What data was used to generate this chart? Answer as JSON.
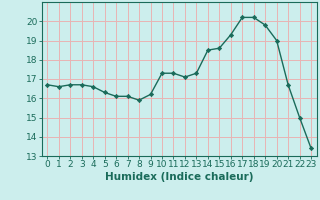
{
  "x": [
    0,
    1,
    2,
    3,
    4,
    5,
    6,
    7,
    8,
    9,
    10,
    11,
    12,
    13,
    14,
    15,
    16,
    17,
    18,
    19,
    20,
    21,
    22,
    23
  ],
  "y": [
    16.7,
    16.6,
    16.7,
    16.7,
    16.6,
    16.3,
    16.1,
    16.1,
    15.9,
    16.2,
    17.3,
    17.3,
    17.1,
    17.3,
    18.5,
    18.6,
    19.3,
    20.2,
    20.2,
    19.8,
    19.0,
    16.7,
    15.0,
    13.4
  ],
  "xlabel": "Humidex (Indice chaleur)",
  "bg_color": "#cceeed",
  "grid_color": "#e8b4b4",
  "line_color": "#1a6b5a",
  "marker_color": "#1a6b5a",
  "ylim": [
    13,
    21
  ],
  "xlim": [
    -0.5,
    23.5
  ],
  "yticks": [
    13,
    14,
    15,
    16,
    17,
    18,
    19,
    20
  ],
  "xticks": [
    0,
    1,
    2,
    3,
    4,
    5,
    6,
    7,
    8,
    9,
    10,
    11,
    12,
    13,
    14,
    15,
    16,
    17,
    18,
    19,
    20,
    21,
    22,
    23
  ],
  "xlabel_fontsize": 7.5,
  "tick_fontsize": 6.5
}
